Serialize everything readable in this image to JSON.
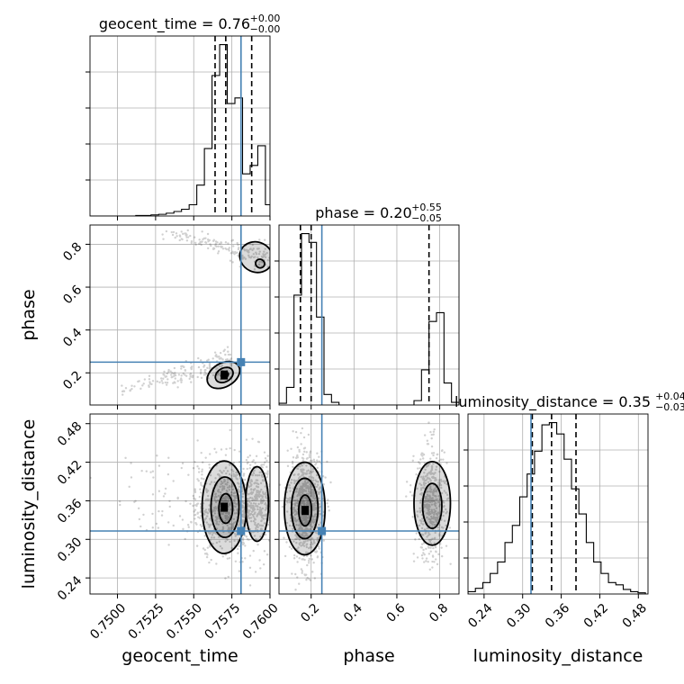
{
  "chart_data": {
    "type": "corner",
    "truth_color": "#4682b4",
    "parameters": [
      {
        "name": "geocent_time",
        "axis_label": "geocent_time",
        "range": [
          0.7482,
          0.76
        ],
        "ticks": [
          0.75,
          0.7525,
          0.755,
          0.7575,
          0.76
        ],
        "tick_labels": [
          "0.7500",
          "0.7525",
          "0.7550",
          "0.7575",
          "0.7600"
        ],
        "title_prefix": "geocent_time = 0.76",
        "title_upper": "+0.00",
        "title_lower": "−0.00",
        "quantiles": [
          0.7564,
          0.7571,
          0.7588
        ],
        "truth": 0.7581,
        "hist_bins": [
          0.7482,
          0.7487,
          0.7492,
          0.7497,
          0.7502,
          0.7507,
          0.7512,
          0.7517,
          0.7522,
          0.7527,
          0.7532,
          0.7537,
          0.7542,
          0.7547,
          0.7552,
          0.7557,
          0.7562,
          0.7567,
          0.7572,
          0.7577,
          0.7582,
          0.7587,
          0.7592,
          0.7597,
          0.76
        ],
        "hist_counts": [
          0,
          0,
          0,
          0,
          0,
          0,
          1,
          1,
          2,
          3,
          5,
          8,
          12,
          20,
          55,
          120,
          250,
          305,
          200,
          210,
          75,
          90,
          125,
          20
        ]
      },
      {
        "name": "phase",
        "axis_label": "phase",
        "range": [
          0.05,
          0.89
        ],
        "ticks": [
          0.2,
          0.4,
          0.6,
          0.8
        ],
        "tick_labels": [
          "0.2",
          "0.4",
          "0.6",
          "0.8"
        ],
        "title_prefix": "phase = 0.20",
        "title_upper": "+0.55",
        "title_lower": "−0.05",
        "quantiles": [
          0.15,
          0.2,
          0.75
        ],
        "truth": 0.25,
        "hist_bins": [
          0.05,
          0.085,
          0.12,
          0.155,
          0.19,
          0.225,
          0.26,
          0.295,
          0.33,
          0.365,
          0.4,
          0.435,
          0.47,
          0.505,
          0.54,
          0.575,
          0.61,
          0.645,
          0.68,
          0.715,
          0.75,
          0.785,
          0.82,
          0.855,
          0.89
        ],
        "hist_counts": [
          2,
          20,
          125,
          195,
          185,
          100,
          12,
          3,
          0,
          0,
          0,
          0,
          0,
          0,
          0,
          0,
          0,
          0,
          5,
          40,
          95,
          105,
          25,
          3
        ]
      },
      {
        "name": "luminosity_distance",
        "axis_label": "luminosity_distance",
        "range": [
          0.215,
          0.495
        ],
        "ticks": [
          0.24,
          0.3,
          0.36,
          0.42,
          0.48
        ],
        "tick_labels": [
          "0.24",
          "0.30",
          "0.36",
          "0.42",
          "0.48"
        ],
        "title_prefix": "luminosity_distance = 0.35",
        "title_upper": "+0.04",
        "title_lower": "−0.03",
        "quantiles": [
          0.315,
          0.345,
          0.383
        ],
        "truth": 0.313,
        "hist_bins": [
          0.215,
          0.2265,
          0.238,
          0.2495,
          0.261,
          0.2725,
          0.284,
          0.2955,
          0.307,
          0.3185,
          0.33,
          0.3415,
          0.353,
          0.3645,
          0.376,
          0.3875,
          0.399,
          0.4105,
          0.422,
          0.4335,
          0.445,
          0.4565,
          0.468,
          0.4795,
          0.491
        ],
        "hist_counts": [
          2,
          5,
          10,
          18,
          28,
          45,
          60,
          85,
          105,
          125,
          148,
          150,
          140,
          118,
          92,
          70,
          45,
          28,
          18,
          10,
          8,
          4,
          2,
          1
        ]
      }
    ],
    "panels_2d": [
      {
        "row": 1,
        "col": 0,
        "x": "geocent_time",
        "y": "phase",
        "blobs": [
          {
            "kind": "band",
            "x0": 0.75,
            "y0": 0.11,
            "x1": 0.7575,
            "y1": 0.26,
            "thickness": 0.035,
            "n": 180
          },
          {
            "kind": "band",
            "x0": 0.7525,
            "y0": 0.87,
            "x1": 0.76,
            "y1": 0.73,
            "thickness": 0.03,
            "n": 170
          }
        ],
        "contours": [
          {
            "cx": 0.75695,
            "cy": 0.19,
            "rx": 0.00115,
            "ry": 0.055,
            "rot": -30
          },
          {
            "cx": 0.757,
            "cy": 0.19,
            "rx": 0.00062,
            "ry": 0.032,
            "rot": -30
          },
          {
            "cx": 0.75703,
            "cy": 0.19,
            "rx": 0.00025,
            "ry": 0.014,
            "rot": -30
          },
          {
            "cx": 0.7591,
            "cy": 0.74,
            "rx": 0.0011,
            "ry": 0.07,
            "rot": 25
          },
          {
            "cx": 0.75935,
            "cy": 0.71,
            "rx": 0.0003,
            "ry": 0.02,
            "rot": 25
          }
        ],
        "dark_points": [
          {
            "x": 0.757,
            "y": 0.19
          }
        ]
      },
      {
        "row": 2,
        "col": 0,
        "x": "geocent_time",
        "y": "luminosity_distance",
        "blobs": [
          {
            "kind": "cloud",
            "cx": 0.7571,
            "cy": 0.35,
            "sx": 0.0011,
            "sy": 0.038,
            "n": 650
          },
          {
            "kind": "cloud",
            "cx": 0.7592,
            "cy": 0.36,
            "sx": 0.0006,
            "sy": 0.035,
            "n": 300
          },
          {
            "kind": "cloud",
            "cx": 0.753,
            "cy": 0.36,
            "sx": 0.002,
            "sy": 0.04,
            "n": 60
          }
        ],
        "contours": [
          {
            "cx": 0.757,
            "cy": 0.35,
            "rx": 0.00145,
            "ry": 0.072,
            "rot": 0
          },
          {
            "cx": 0.75705,
            "cy": 0.35,
            "rx": 0.00092,
            "ry": 0.047,
            "rot": 0
          },
          {
            "cx": 0.7571,
            "cy": 0.348,
            "rx": 0.00045,
            "ry": 0.023,
            "rot": 0
          },
          {
            "cx": 0.75915,
            "cy": 0.355,
            "rx": 0.00075,
            "ry": 0.058,
            "rot": 0
          }
        ],
        "dark_points": [
          {
            "x": 0.757,
            "y": 0.35
          }
        ]
      },
      {
        "row": 2,
        "col": 1,
        "x": "phase",
        "y": "luminosity_distance",
        "blobs": [
          {
            "kind": "cloud",
            "cx": 0.175,
            "cy": 0.348,
            "sx": 0.04,
            "sy": 0.042,
            "n": 800
          },
          {
            "kind": "cloud",
            "cx": 0.76,
            "cy": 0.355,
            "sx": 0.038,
            "sy": 0.045,
            "n": 450
          }
        ],
        "contours": [
          {
            "cx": 0.17,
            "cy": 0.348,
            "rx": 0.095,
            "ry": 0.072,
            "rot": 0
          },
          {
            "cx": 0.17,
            "cy": 0.348,
            "rx": 0.062,
            "ry": 0.047,
            "rot": 0
          },
          {
            "cx": 0.172,
            "cy": 0.345,
            "rx": 0.03,
            "ry": 0.024,
            "rot": 0
          },
          {
            "cx": 0.765,
            "cy": 0.356,
            "rx": 0.085,
            "ry": 0.065,
            "rot": 0
          },
          {
            "cx": 0.765,
            "cy": 0.352,
            "rx": 0.045,
            "ry": 0.035,
            "rot": 0
          }
        ],
        "dark_points": [
          {
            "x": 0.172,
            "y": 0.345
          }
        ]
      }
    ]
  }
}
